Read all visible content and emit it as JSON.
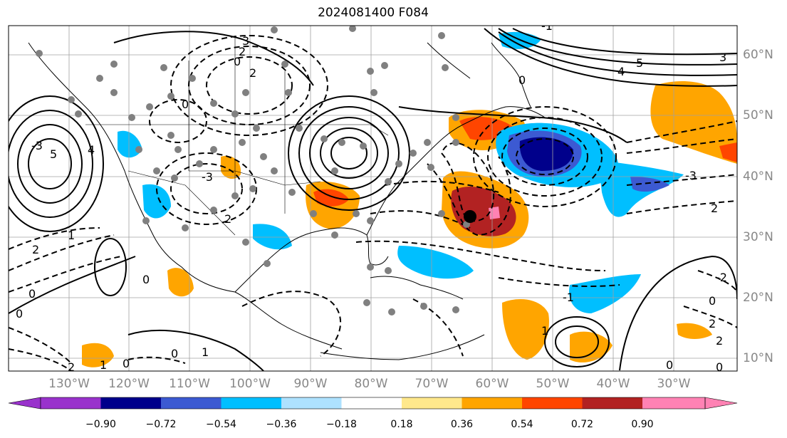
{
  "title": "2024081400 F084",
  "lat_labels": [
    "60°N",
    "50°N",
    "40°N",
    "30°N",
    "20°N",
    "10°N"
  ],
  "lon_labels": [
    "130°W",
    "120°W",
    "110°W",
    "100°W",
    "90°W",
    "80°W",
    "70°W",
    "60°W",
    "50°W",
    "40°W",
    "30°W"
  ],
  "colorbar": {
    "ticks": [
      "−0.90",
      "−0.72",
      "−0.54",
      "−0.36",
      "−0.18",
      "0.18",
      "0.36",
      "0.54",
      "0.72",
      "0.90"
    ],
    "colors": [
      "#9932cc",
      "#00008b",
      "#3c5ad2",
      "#00bfff",
      "#aee2ff",
      "#ffffff",
      "#ffe88c",
      "#ffa500",
      "#ff4500",
      "#b22222",
      "#ff82b4"
    ]
  },
  "contour_labels": [
    {
      "text": "3"
    },
    {
      "text": "2"
    },
    {
      "text": "0"
    },
    {
      "text": "2"
    },
    {
      "text": "-3"
    },
    {
      "text": "0"
    },
    {
      "text": "2"
    },
    {
      "text": "4"
    },
    {
      "text": "5"
    },
    {
      "text": "-3"
    },
    {
      "text": "5"
    },
    {
      "text": "4"
    },
    {
      "text": "3"
    },
    {
      "text": "0"
    },
    {
      "text": "-3"
    },
    {
      "text": "2"
    },
    {
      "text": "2"
    },
    {
      "text": "1"
    },
    {
      "text": "0"
    },
    {
      "text": "0"
    },
    {
      "text": "1"
    },
    {
      "text": "2"
    },
    {
      "text": "0"
    },
    {
      "text": "1"
    },
    {
      "text": "0"
    },
    {
      "text": "-1"
    },
    {
      "text": "2"
    },
    {
      "text": "0"
    },
    {
      "text": "-2"
    },
    {
      "text": "0"
    },
    {
      "text": "0"
    },
    {
      "text": "2"
    },
    {
      "text": "1"
    },
    {
      "text": "0"
    },
    {
      "text": "-1"
    }
  ]
}
